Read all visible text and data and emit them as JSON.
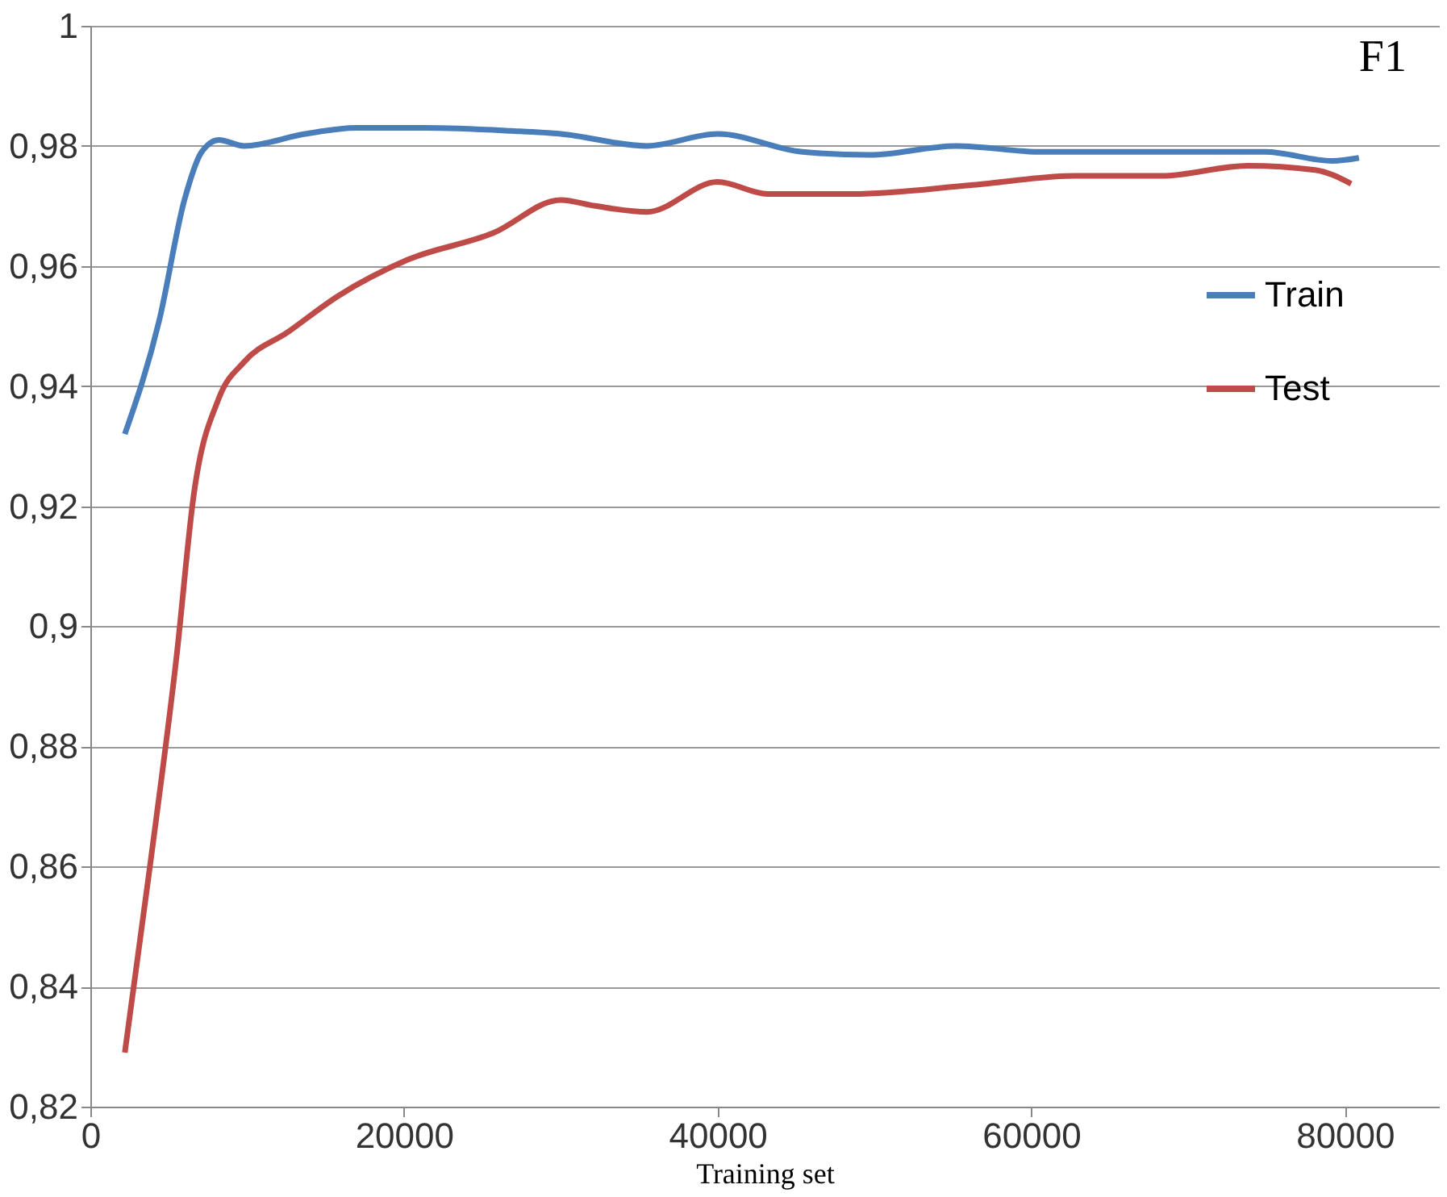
{
  "chart_data": {
    "type": "line",
    "title": "F1",
    "xlabel": "Training set",
    "xlim": [
      0,
      86000
    ],
    "xticks": [
      0,
      20000,
      40000,
      60000,
      80000
    ],
    "ylim": [
      0.82,
      1
    ],
    "yticks": [
      {
        "value": 0.82,
        "label": "0,82"
      },
      {
        "value": 0.84,
        "label": "0,84"
      },
      {
        "value": 0.86,
        "label": "0,86"
      },
      {
        "value": 0.88,
        "label": "0,88"
      },
      {
        "value": 0.9,
        "label": "0,9"
      },
      {
        "value": 0.92,
        "label": "0,92"
      },
      {
        "value": 0.94,
        "label": "0,94"
      },
      {
        "value": 0.96,
        "label": "0,96"
      },
      {
        "value": 0.98,
        "label": "0,98"
      },
      {
        "value": 1,
        "label": "1"
      }
    ],
    "grid": "y",
    "legend": "right",
    "marker": "none",
    "line_style": "solid",
    "series": [
      {
        "name": "Train",
        "color": "#4a7ebb",
        "x": [
          2200,
          4400,
          6000,
          7100,
          8200,
          9800,
          13700,
          17000,
          21300,
          26800,
          30000,
          35500,
          40000,
          45400,
          49700,
          55200,
          60700,
          67200,
          74900,
          79200,
          80900
        ],
        "values": [
          0.932,
          0.951,
          0.971,
          0.979,
          0.981,
          0.98,
          0.982,
          0.983,
          0.983,
          0.9825,
          0.982,
          0.98,
          0.982,
          0.979,
          0.9785,
          0.98,
          0.979,
          0.979,
          0.979,
          0.9775,
          0.978
        ]
      },
      {
        "name": "Test",
        "color": "#be4b48",
        "x": [
          2200,
          3800,
          5500,
          6600,
          8200,
          9800,
          12600,
          15800,
          20200,
          25700,
          30000,
          32200,
          35500,
          40000,
          43200,
          48600,
          56300,
          62800,
          68300,
          73800,
          78100,
          80400
        ],
        "values": [
          0.829,
          0.86,
          0.895,
          0.922,
          0.938,
          0.944,
          0.949,
          0.955,
          0.961,
          0.9655,
          0.971,
          0.97,
          0.969,
          0.974,
          0.972,
          0.972,
          0.9735,
          0.975,
          0.975,
          0.9767,
          0.976,
          0.9737
        ]
      }
    ]
  }
}
